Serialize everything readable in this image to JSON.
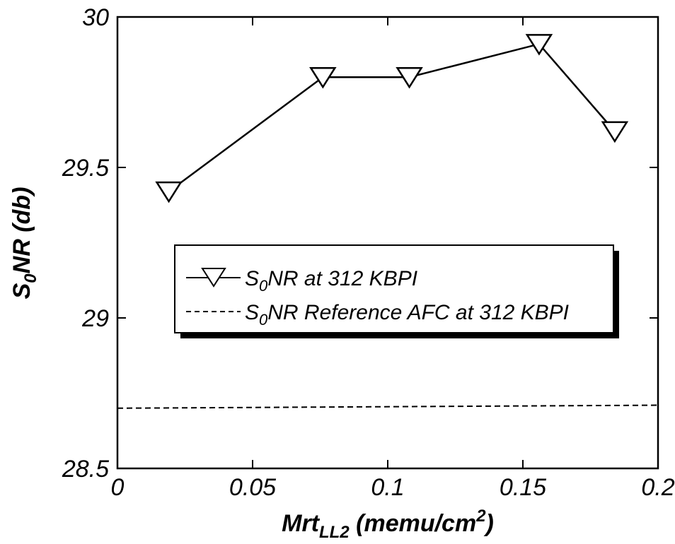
{
  "chart_data": {
    "type": "line",
    "xlabel": {
      "main": "Mrt",
      "sub": "LL2",
      "rest": " (memu/cm",
      "sup": "2",
      "end": ")"
    },
    "ylabel": {
      "main": "S",
      "sub": "0",
      "rest": "NR (db)"
    },
    "xlim": [
      0,
      0.2
    ],
    "ylim": [
      28.5,
      30
    ],
    "x_ticks": [
      "0",
      "0.05",
      "0.1",
      "0.15",
      "0.2"
    ],
    "y_ticks": [
      "28.5",
      "29",
      "29.5",
      "30"
    ],
    "x_tick_values": [
      0,
      0.05,
      0.1,
      0.15,
      0.2
    ],
    "y_tick_values": [
      28.5,
      29,
      29.5,
      30
    ],
    "series": [
      {
        "name": "S0NR at 312 KBPI",
        "legend": {
          "main": "S",
          "sub": "0",
          "rest": "NR at 312 KBPI"
        },
        "style": "solid-line-with-down-triangle-markers",
        "color": "#000000",
        "x": [
          0.019,
          0.076,
          0.108,
          0.156,
          0.184
        ],
        "y": [
          29.42,
          29.8,
          29.8,
          29.91,
          29.62
        ]
      },
      {
        "name": "S0NR Reference AFC at 312 KBPI",
        "legend": {
          "main": "S",
          "sub": "0",
          "rest": "NR Reference AFC at 312 KBPI"
        },
        "style": "dashed-line",
        "color": "#000000",
        "x": [
          0,
          0.2
        ],
        "y": [
          28.7,
          28.71
        ]
      }
    ],
    "legend_position": "center",
    "grid": false
  }
}
